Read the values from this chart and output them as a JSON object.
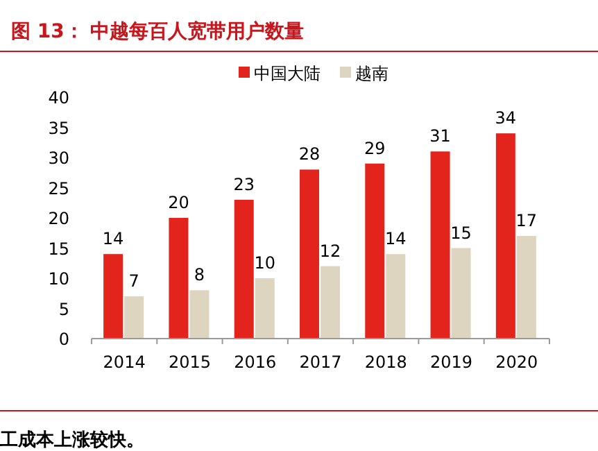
{
  "chart_data": {
    "type": "bar",
    "title": "图 13：  中越每百人宽带用户数量",
    "categories": [
      "2014",
      "2015",
      "2016",
      "2017",
      "2018",
      "2019",
      "2020"
    ],
    "series": [
      {
        "name": "中国大陆",
        "color": "#e3241d",
        "values": [
          14,
          20,
          23,
          28,
          29,
          31,
          34
        ]
      },
      {
        "name": "越南",
        "color": "#ddd5c0",
        "values": [
          7,
          8,
          10,
          12,
          14,
          15,
          17
        ]
      }
    ],
    "ylim": [
      0,
      40
    ],
    "yticks": [
      0,
      5,
      10,
      15,
      20,
      25,
      30,
      35,
      40
    ],
    "data_labels": true,
    "legend": "top",
    "grid": false,
    "annotations": [
      "工成本上涨较快。"
    ]
  }
}
